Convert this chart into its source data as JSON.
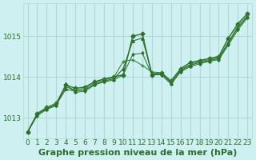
{
  "bg_color": "#cff0f0",
  "grid_color": "#b0d8d8",
  "line_color_main": "#2d6e2d",
  "line_color_light": "#3a8a3a",
  "xlabel": "Graphe pression niveau de la mer (hPa)",
  "xlabel_fontsize": 8,
  "tick_fontsize": 6.5,
  "xlim": [
    -0.5,
    23.5
  ],
  "ylim": [
    1012.5,
    1015.8
  ],
  "yticks": [
    1013,
    1014,
    1015
  ],
  "xticks": [
    0,
    1,
    2,
    3,
    4,
    5,
    6,
    7,
    8,
    9,
    10,
    11,
    12,
    13,
    14,
    15,
    16,
    17,
    18,
    19,
    20,
    21,
    22,
    23
  ],
  "series1_x": [
    0,
    1,
    2,
    3,
    4,
    5,
    6,
    7,
    8,
    9,
    10,
    11,
    12,
    13,
    14,
    15,
    16,
    17,
    18,
    19,
    20,
    21,
    22,
    23
  ],
  "series1_y": [
    1012.65,
    1013.1,
    1013.25,
    1013.35,
    1013.8,
    1013.72,
    1013.75,
    1013.88,
    1013.95,
    1014.0,
    1014.05,
    1015.0,
    1015.05,
    1014.05,
    1014.1,
    1013.9,
    1014.2,
    1014.35,
    1014.4,
    1014.45,
    1014.5,
    1014.95,
    1015.3,
    1015.55
  ],
  "series2_x": [
    0,
    1,
    2,
    3,
    4,
    5,
    6,
    7,
    8,
    9,
    10,
    11,
    12,
    13,
    14,
    15,
    16,
    17,
    18,
    19,
    20,
    21,
    22,
    23
  ],
  "series2_y": [
    1012.65,
    1013.1,
    1013.25,
    1013.35,
    1013.75,
    1013.68,
    1013.72,
    1013.85,
    1013.93,
    1013.98,
    1014.38,
    1014.42,
    1014.28,
    1014.12,
    1014.1,
    1013.88,
    1014.18,
    1014.3,
    1014.38,
    1014.42,
    1014.48,
    1014.85,
    1015.25,
    1015.5
  ],
  "series3_x": [
    0,
    1,
    2,
    3,
    4,
    5,
    6,
    7,
    8,
    9,
    10,
    11,
    12,
    13,
    14,
    15,
    16,
    17,
    18,
    19,
    20,
    21,
    22,
    23
  ],
  "series3_y": [
    1012.65,
    1013.08,
    1013.22,
    1013.32,
    1013.7,
    1013.65,
    1013.68,
    1013.82,
    1013.9,
    1013.95,
    1014.2,
    1014.88,
    1014.95,
    1014.08,
    1014.08,
    1013.85,
    1014.15,
    1014.28,
    1014.35,
    1014.4,
    1014.45,
    1014.82,
    1015.2,
    1015.48
  ],
  "series4_x": [
    0,
    1,
    2,
    3,
    4,
    5,
    6,
    7,
    8,
    9,
    10,
    11,
    12,
    13,
    14,
    15,
    16,
    17,
    18,
    19,
    20,
    21,
    22,
    23
  ],
  "series4_y": [
    1012.65,
    1013.05,
    1013.2,
    1013.3,
    1013.82,
    1013.62,
    1013.65,
    1013.8,
    1013.88,
    1013.92,
    1014.05,
    1014.55,
    1014.58,
    1014.05,
    1014.05,
    1013.82,
    1014.12,
    1014.25,
    1014.32,
    1014.38,
    1014.42,
    1014.78,
    1015.15,
    1015.45
  ]
}
